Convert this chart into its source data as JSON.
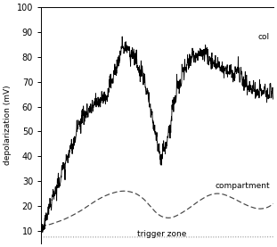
{
  "title": "",
  "ylabel": "depolarization (mV)",
  "xlabel": "",
  "ylim": [
    5,
    100
  ],
  "xlim": [
    0,
    1.0
  ],
  "yticks": [
    10,
    20,
    30,
    40,
    50,
    60,
    70,
    80,
    90,
    100
  ],
  "label_compartment": "compartment",
  "label_trigger": "trigger zone",
  "label_col": "col",
  "bg_color": "#ffffff",
  "line_color_main": "#000000",
  "line_color_comp": "#555555",
  "line_color_trigger": "#999999"
}
